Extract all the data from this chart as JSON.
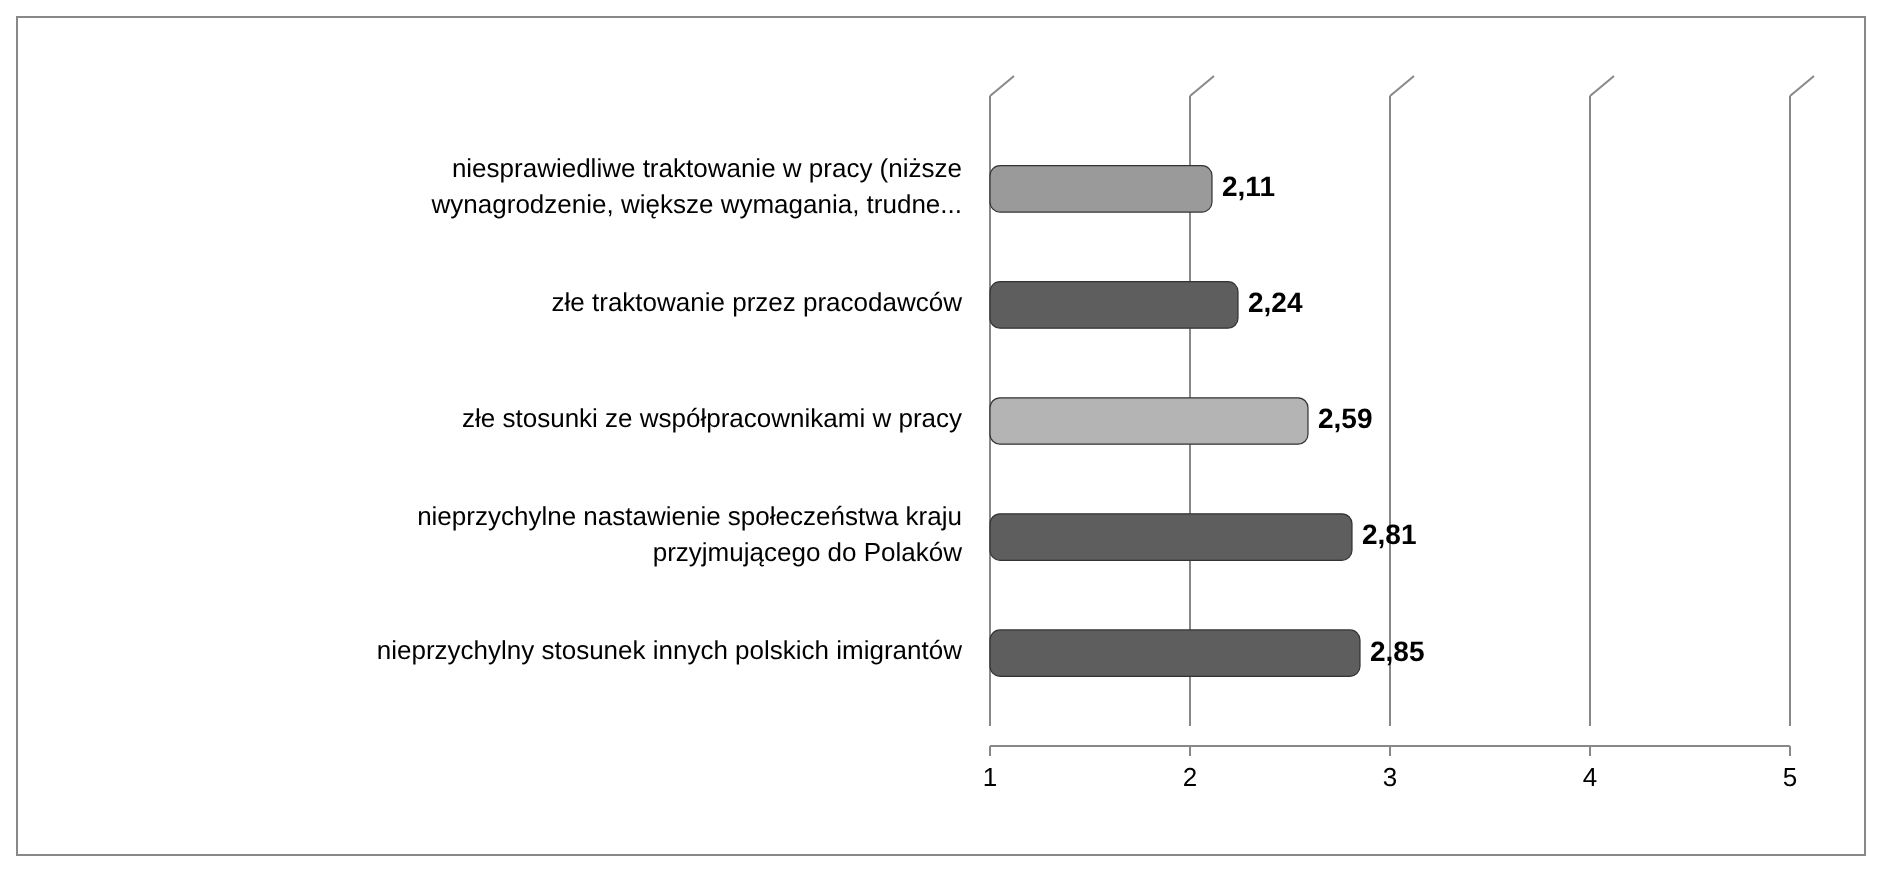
{
  "chart_data": {
    "type": "bar",
    "orientation": "horizontal",
    "categories": [
      "niesprawiedliwe traktowanie w pracy (niższe wynagrodzenie, większe wymagania, trudne...",
      "złe traktowanie przez pracodawców",
      "złe stosunki ze współpracownikami w pracy",
      "nieprzychylne nastawienie społeczeństwa kraju przyjmującego do Polaków",
      "nieprzychylny stosunek innych polskich imigrantów"
    ],
    "values": [
      2.11,
      2.24,
      2.59,
      2.81,
      2.85
    ],
    "value_labels": [
      "2,11",
      "2,24",
      "2,59",
      "2,81",
      "2,85"
    ],
    "colors": [
      "#9a9a9a",
      "#5e5e5e",
      "#b4b4b4",
      "#5e5e5e",
      "#5e5e5e"
    ],
    "xlim": [
      1,
      5
    ],
    "xticks": [
      1,
      2,
      3,
      4,
      5
    ],
    "grid": "x"
  }
}
